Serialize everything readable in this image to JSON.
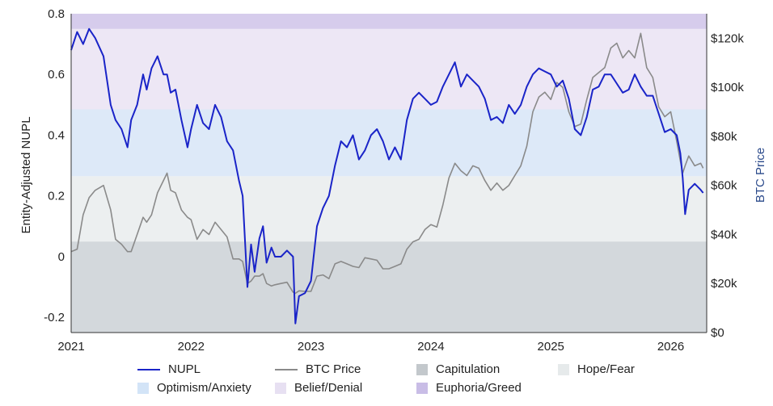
{
  "chart_data": {
    "type": "line",
    "title": "",
    "ylabel": "Entity-Adjusted NUPL",
    "y2label": "BTC Price",
    "ylim": [
      -0.25,
      0.8
    ],
    "y2lim": [
      0,
      130000
    ],
    "xlim": [
      2021.0,
      2026.3
    ],
    "left_ticks": [
      "0.8",
      "0.6",
      "0.4",
      "0.2",
      "0",
      "-0.2"
    ],
    "left_tick_values": [
      0.8,
      0.6,
      0.4,
      0.2,
      0,
      -0.2
    ],
    "right_ticks": [
      "$120k",
      "$100k",
      "$80k",
      "$60k",
      "$40k",
      "$20k",
      "$0"
    ],
    "right_tick_values": [
      120000,
      100000,
      80000,
      60000,
      40000,
      20000,
      0
    ],
    "x_ticks": [
      "2021",
      "2022",
      "2023",
      "2024",
      "2025",
      "2026"
    ],
    "x_tick_values": [
      2021,
      2022,
      2023,
      2024,
      2025,
      2026
    ],
    "zones": [
      {
        "name": "Capitulation",
        "from": -0.25,
        "to": 0.05,
        "color": "#d3d8dc"
      },
      {
        "name": "Hope/Fear",
        "from": 0.05,
        "to": 0.265,
        "color": "#eceff0"
      },
      {
        "name": "Optimism/Anxiety",
        "from": 0.265,
        "to": 0.485,
        "color": "#dde9f8"
      },
      {
        "name": "Belief/Denial",
        "from": 0.485,
        "to": 0.75,
        "color": "#ede7f5"
      },
      {
        "name": "Euphoria/Greed",
        "from": 0.75,
        "to": 0.8,
        "color": "#d6ccec"
      }
    ],
    "series": [
      {
        "name": "NUPL",
        "axis": "left",
        "color": "#1a24c8",
        "x": [
          2021.0,
          2021.05,
          2021.1,
          2021.15,
          2021.2,
          2021.27,
          2021.33,
          2021.37,
          2021.42,
          2021.47,
          2021.5,
          2021.55,
          2021.6,
          2021.63,
          2021.67,
          2021.72,
          2021.77,
          2021.8,
          2021.83,
          2021.87,
          2021.92,
          2021.97,
          2022.0,
          2022.05,
          2022.1,
          2022.15,
          2022.2,
          2022.25,
          2022.3,
          2022.35,
          2022.4,
          2022.43,
          2022.47,
          2022.5,
          2022.53,
          2022.57,
          2022.6,
          2022.63,
          2022.67,
          2022.7,
          2022.75,
          2022.8,
          2022.85,
          2022.87,
          2022.9,
          2022.95,
          2023.0,
          2023.05,
          2023.1,
          2023.15,
          2023.2,
          2023.25,
          2023.3,
          2023.35,
          2023.4,
          2023.45,
          2023.5,
          2023.55,
          2023.6,
          2023.65,
          2023.7,
          2023.75,
          2023.8,
          2023.85,
          2023.9,
          2023.95,
          2024.0,
          2024.05,
          2024.1,
          2024.15,
          2024.2,
          2024.25,
          2024.3,
          2024.35,
          2024.4,
          2024.45,
          2024.5,
          2024.55,
          2024.6,
          2024.65,
          2024.7,
          2024.75,
          2024.8,
          2024.85,
          2024.9,
          2024.95,
          2025.0,
          2025.05,
          2025.1,
          2025.15,
          2025.2,
          2025.25,
          2025.3,
          2025.35,
          2025.4,
          2025.45,
          2025.5,
          2025.55,
          2025.6,
          2025.65,
          2025.7,
          2025.75,
          2025.8,
          2025.85,
          2025.9,
          2025.95,
          2026.0,
          2026.05,
          2026.08,
          2026.1,
          2026.12,
          2026.15,
          2026.2,
          2026.25,
          2026.27
        ],
        "values": [
          0.68,
          0.74,
          0.7,
          0.75,
          0.72,
          0.66,
          0.5,
          0.45,
          0.42,
          0.36,
          0.45,
          0.5,
          0.6,
          0.55,
          0.62,
          0.66,
          0.6,
          0.6,
          0.54,
          0.55,
          0.45,
          0.36,
          0.42,
          0.5,
          0.44,
          0.42,
          0.5,
          0.46,
          0.38,
          0.35,
          0.25,
          0.2,
          -0.1,
          0.04,
          -0.05,
          0.06,
          0.1,
          -0.02,
          0.03,
          0.0,
          0.0,
          0.02,
          0.0,
          -0.22,
          -0.13,
          -0.12,
          -0.08,
          0.1,
          0.16,
          0.2,
          0.3,
          0.38,
          0.36,
          0.4,
          0.32,
          0.35,
          0.4,
          0.42,
          0.38,
          0.32,
          0.36,
          0.32,
          0.45,
          0.52,
          0.54,
          0.52,
          0.5,
          0.51,
          0.56,
          0.6,
          0.64,
          0.56,
          0.6,
          0.58,
          0.56,
          0.52,
          0.45,
          0.46,
          0.44,
          0.5,
          0.47,
          0.5,
          0.56,
          0.6,
          0.62,
          0.61,
          0.6,
          0.56,
          0.58,
          0.52,
          0.42,
          0.4,
          0.46,
          0.55,
          0.56,
          0.6,
          0.6,
          0.57,
          0.54,
          0.55,
          0.6,
          0.56,
          0.53,
          0.53,
          0.47,
          0.41,
          0.42,
          0.4,
          0.34,
          0.26,
          0.14,
          0.22,
          0.24,
          0.22,
          0.21
        ]
      },
      {
        "name": "BTC Price",
        "axis": "right",
        "color": "#8a8a8a",
        "x": [
          2021.0,
          2021.05,
          2021.1,
          2021.15,
          2021.2,
          2021.27,
          2021.33,
          2021.37,
          2021.42,
          2021.47,
          2021.5,
          2021.55,
          2021.6,
          2021.63,
          2021.67,
          2021.72,
          2021.77,
          2021.8,
          2021.83,
          2021.87,
          2021.92,
          2021.97,
          2022.0,
          2022.05,
          2022.1,
          2022.15,
          2022.2,
          2022.25,
          2022.3,
          2022.35,
          2022.4,
          2022.43,
          2022.47,
          2022.5,
          2022.53,
          2022.57,
          2022.6,
          2022.63,
          2022.67,
          2022.7,
          2022.75,
          2022.8,
          2022.85,
          2022.87,
          2022.9,
          2022.95,
          2023.0,
          2023.05,
          2023.1,
          2023.15,
          2023.2,
          2023.25,
          2023.3,
          2023.35,
          2023.4,
          2023.45,
          2023.5,
          2023.55,
          2023.6,
          2023.65,
          2023.7,
          2023.75,
          2023.8,
          2023.85,
          2023.9,
          2023.95,
          2024.0,
          2024.05,
          2024.1,
          2024.15,
          2024.2,
          2024.25,
          2024.3,
          2024.35,
          2024.4,
          2024.45,
          2024.5,
          2024.55,
          2024.6,
          2024.65,
          2024.7,
          2024.75,
          2024.8,
          2024.85,
          2024.9,
          2024.95,
          2025.0,
          2025.05,
          2025.1,
          2025.15,
          2025.2,
          2025.25,
          2025.3,
          2025.35,
          2025.4,
          2025.45,
          2025.5,
          2025.55,
          2025.6,
          2025.65,
          2025.7,
          2025.75,
          2025.8,
          2025.85,
          2025.9,
          2025.95,
          2026.0,
          2026.05,
          2026.08,
          2026.1,
          2026.12,
          2026.15,
          2026.2,
          2026.25,
          2026.27
        ],
        "values": [
          33000,
          34000,
          48000,
          55000,
          58000,
          60000,
          50000,
          38000,
          36000,
          33000,
          33000,
          40000,
          47000,
          45000,
          48000,
          57000,
          62000,
          65000,
          58000,
          57000,
          50000,
          47000,
          46000,
          38000,
          42000,
          40000,
          45000,
          42000,
          39000,
          30000,
          30000,
          29000,
          20000,
          21000,
          23000,
          23000,
          24000,
          20000,
          19000,
          19500,
          20000,
          20500,
          16500,
          16000,
          17000,
          16800,
          16800,
          23000,
          23500,
          22000,
          28000,
          29000,
          28000,
          27000,
          26500,
          30500,
          30000,
          29500,
          26000,
          26000,
          27000,
          28000,
          34000,
          37000,
          38000,
          42000,
          44000,
          43000,
          52000,
          63000,
          69000,
          66000,
          64000,
          68000,
          67000,
          62000,
          58000,
          61000,
          58000,
          60000,
          64000,
          68000,
          76000,
          90000,
          96000,
          98000,
          95000,
          102000,
          100000,
          90000,
          84000,
          85000,
          95000,
          104000,
          106000,
          108000,
          116000,
          118000,
          112000,
          115000,
          112000,
          122000,
          108000,
          104000,
          92000,
          88000,
          90000,
          78000,
          70000,
          65000,
          68000,
          72000,
          68000,
          69000,
          67000
        ]
      }
    ]
  },
  "legend": {
    "nupl": "NUPL",
    "btc_price": "BTC Price",
    "capitulation": "Capitulation",
    "hope_fear": "Hope/Fear",
    "optimism_anxiety": "Optimism/Anxiety",
    "belief_denial": "Belief/Denial",
    "euphoria_greed": "Euphoria/Greed"
  }
}
